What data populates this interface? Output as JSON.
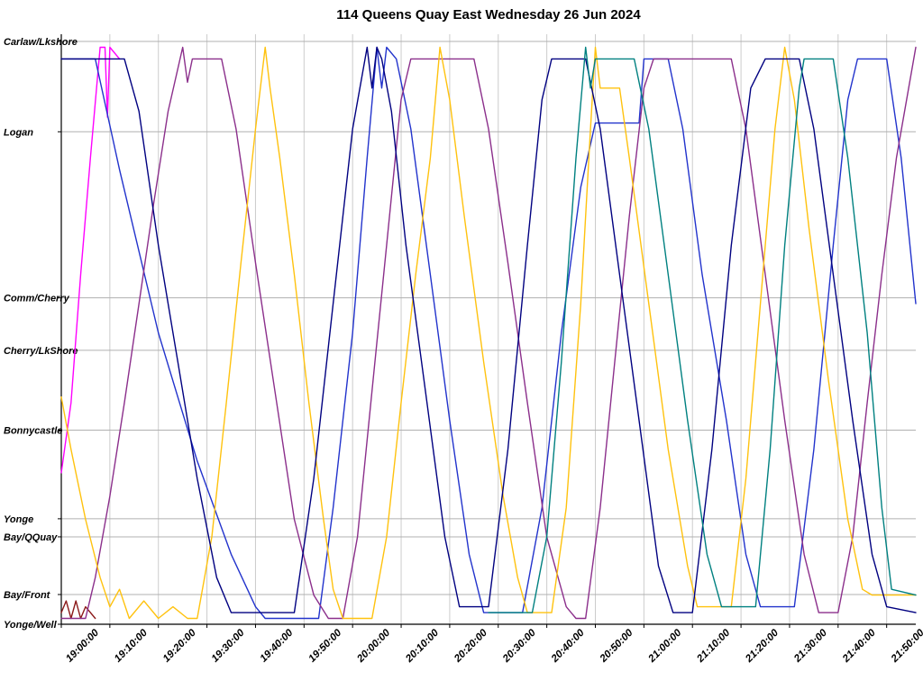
{
  "chart_data": {
    "type": "line",
    "title": "114 Queens Quay East Wednesday 26 Jun 2024",
    "xlabel": "",
    "ylabel": "",
    "grid": true,
    "legend": "none",
    "x_axis": {
      "unit": "time-of-day",
      "start_label": "19:00:00",
      "end_minutes": 176,
      "tick_interval_minutes": 10,
      "tick_labels": [
        "19:00:00",
        "19:10:00",
        "19:20:00",
        "19:30:00",
        "19:40:00",
        "19:50:00",
        "20:00:00",
        "20:10:00",
        "20:20:00",
        "20:30:00",
        "20:40:00",
        "20:50:00",
        "21:00:00",
        "21:10:00",
        "21:20:00",
        "21:30:00",
        "21:40:00",
        "21:50:00"
      ]
    },
    "y_axis": {
      "unit": "position-along-route",
      "range": [
        0,
        100
      ],
      "stations": [
        {
          "name": "Carlaw/Lkshore",
          "position": 100
        },
        {
          "name": "Logan",
          "position": 84.5
        },
        {
          "name": "Comm/Cherry",
          "position": 56
        },
        {
          "name": "Cherry/LkShore",
          "position": 47
        },
        {
          "name": "Bonnycastle",
          "position": 33.3
        },
        {
          "name": "Yonge",
          "position": 18.1
        },
        {
          "name": "Bay/QQuay",
          "position": 15
        },
        {
          "name": "Bay/Front",
          "position": 5.1
        },
        {
          "name": "Yonge/Well",
          "position": 0
        }
      ]
    },
    "series": [
      {
        "name": "vehicle-magenta",
        "color": "#ff00ff",
        "points": [
          [
            0,
            26
          ],
          [
            2,
            38
          ],
          [
            4,
            60
          ],
          [
            6,
            80
          ],
          [
            8,
            99
          ],
          [
            9,
            99
          ],
          [
            9.5,
            87
          ],
          [
            10,
            99
          ],
          [
            12,
            97
          ]
        ]
      },
      {
        "name": "vehicle-darkred",
        "color": "#8b1a1a",
        "points": [
          [
            0,
            2
          ],
          [
            1,
            4
          ],
          [
            2,
            1
          ],
          [
            3,
            4
          ],
          [
            4,
            1
          ],
          [
            5,
            3
          ],
          [
            7,
            1
          ]
        ]
      },
      {
        "name": "vehicle-blue",
        "color": "#2233cc",
        "points": [
          [
            0,
            97
          ],
          [
            7,
            97
          ],
          [
            12,
            78
          ],
          [
            20,
            50
          ],
          [
            28,
            28
          ],
          [
            35,
            12
          ],
          [
            40,
            3
          ],
          [
            42,
            1
          ],
          [
            53,
            1
          ],
          [
            56,
            20
          ],
          [
            60,
            50
          ],
          [
            63,
            80
          ],
          [
            65,
            99
          ],
          [
            66,
            92
          ],
          [
            67,
            99
          ],
          [
            69,
            97
          ],
          [
            72,
            85
          ],
          [
            76,
            60
          ],
          [
            80,
            35
          ],
          [
            84,
            12
          ],
          [
            87,
            2
          ],
          [
            95,
            2
          ],
          [
            99,
            20
          ],
          [
            103,
            50
          ],
          [
            107,
            75
          ],
          [
            110,
            86
          ],
          [
            119,
            86
          ],
          [
            120,
            97
          ],
          [
            125,
            97
          ],
          [
            128,
            85
          ],
          [
            132,
            60
          ],
          [
            137,
            35
          ],
          [
            141,
            12
          ],
          [
            144,
            3
          ],
          [
            151,
            3
          ],
          [
            155,
            30
          ],
          [
            159,
            65
          ],
          [
            162,
            90
          ],
          [
            164,
            97
          ],
          [
            170,
            97
          ],
          [
            173,
            80
          ],
          [
            176,
            55
          ]
        ]
      },
      {
        "name": "vehicle-purple",
        "color": "#8b2f8b",
        "points": [
          [
            0,
            1
          ],
          [
            5,
            1
          ],
          [
            7,
            8
          ],
          [
            10,
            22
          ],
          [
            13,
            38
          ],
          [
            16,
            55
          ],
          [
            19,
            72
          ],
          [
            22,
            88
          ],
          [
            25,
            99
          ],
          [
            26,
            93
          ],
          [
            27,
            97
          ],
          [
            33,
            97
          ],
          [
            36,
            85
          ],
          [
            40,
            62
          ],
          [
            44,
            40
          ],
          [
            48,
            18
          ],
          [
            52,
            5
          ],
          [
            55,
            1
          ],
          [
            58,
            1
          ],
          [
            61,
            15
          ],
          [
            64,
            40
          ],
          [
            67,
            65
          ],
          [
            70,
            90
          ],
          [
            72,
            97
          ],
          [
            85,
            97
          ],
          [
            88,
            85
          ],
          [
            92,
            62
          ],
          [
            96,
            38
          ],
          [
            100,
            15
          ],
          [
            104,
            3
          ],
          [
            106,
            1
          ],
          [
            108,
            1
          ],
          [
            111,
            20
          ],
          [
            114,
            45
          ],
          [
            117,
            70
          ],
          [
            120,
            92
          ],
          [
            122,
            97
          ],
          [
            138,
            97
          ],
          [
            141,
            85
          ],
          [
            145,
            60
          ],
          [
            149,
            35
          ],
          [
            153,
            12
          ],
          [
            156,
            2
          ],
          [
            160,
            2
          ],
          [
            163,
            15
          ],
          [
            166,
            38
          ],
          [
            169,
            60
          ],
          [
            172,
            80
          ],
          [
            176,
            99
          ]
        ]
      },
      {
        "name": "vehicle-gold",
        "color": "#ffc20e",
        "points": [
          [
            0,
            39
          ],
          [
            2,
            30
          ],
          [
            5,
            18
          ],
          [
            8,
            8
          ],
          [
            10,
            3
          ],
          [
            12,
            6
          ],
          [
            14,
            1
          ],
          [
            17,
            4
          ],
          [
            20,
            1
          ],
          [
            23,
            3
          ],
          [
            26,
            1
          ],
          [
            28,
            1
          ],
          [
            31,
            15
          ],
          [
            34,
            38
          ],
          [
            37,
            62
          ],
          [
            40,
            85
          ],
          [
            42,
            99
          ],
          [
            43,
            92
          ],
          [
            45,
            80
          ],
          [
            48,
            60
          ],
          [
            51,
            38
          ],
          [
            54,
            18
          ],
          [
            56,
            6
          ],
          [
            58,
            1
          ],
          [
            64,
            1
          ],
          [
            67,
            15
          ],
          [
            70,
            38
          ],
          [
            73,
            60
          ],
          [
            76,
            80
          ],
          [
            78,
            99
          ],
          [
            80,
            90
          ],
          [
            83,
            70
          ],
          [
            87,
            45
          ],
          [
            91,
            22
          ],
          [
            94,
            8
          ],
          [
            96,
            2
          ],
          [
            101,
            2
          ],
          [
            104,
            20
          ],
          [
            107,
            55
          ],
          [
            109,
            85
          ],
          [
            110,
            99
          ],
          [
            111,
            92
          ],
          [
            115,
            92
          ],
          [
            117,
            80
          ],
          [
            121,
            55
          ],
          [
            125,
            30
          ],
          [
            129,
            10
          ],
          [
            131,
            3
          ],
          [
            138,
            3
          ],
          [
            141,
            25
          ],
          [
            144,
            55
          ],
          [
            147,
            85
          ],
          [
            149,
            99
          ],
          [
            151,
            90
          ],
          [
            154,
            68
          ],
          [
            158,
            42
          ],
          [
            162,
            18
          ],
          [
            165,
            6
          ],
          [
            167,
            5
          ],
          [
            176,
            5
          ]
        ]
      },
      {
        "name": "vehicle-navy",
        "color": "#000080",
        "points": [
          [
            0,
            97
          ],
          [
            13,
            97
          ],
          [
            16,
            88
          ],
          [
            20,
            65
          ],
          [
            24,
            45
          ],
          [
            28,
            25
          ],
          [
            32,
            8
          ],
          [
            35,
            2
          ],
          [
            48,
            2
          ],
          [
            52,
            25
          ],
          [
            56,
            55
          ],
          [
            60,
            85
          ],
          [
            63,
            99
          ],
          [
            64,
            92
          ],
          [
            65,
            99
          ],
          [
            66,
            97
          ],
          [
            68,
            88
          ],
          [
            71,
            65
          ],
          [
            75,
            40
          ],
          [
            79,
            15
          ],
          [
            82,
            3
          ],
          [
            88,
            3
          ],
          [
            92,
            30
          ],
          [
            96,
            65
          ],
          [
            99,
            90
          ],
          [
            101,
            97
          ],
          [
            108,
            97
          ],
          [
            111,
            85
          ],
          [
            115,
            60
          ],
          [
            119,
            35
          ],
          [
            123,
            10
          ],
          [
            126,
            2
          ],
          [
            130,
            2
          ],
          [
            134,
            30
          ],
          [
            138,
            65
          ],
          [
            142,
            92
          ],
          [
            145,
            97
          ],
          [
            152,
            97
          ],
          [
            155,
            85
          ],
          [
            159,
            60
          ],
          [
            163,
            35
          ],
          [
            167,
            12
          ],
          [
            170,
            3
          ],
          [
            176,
            2
          ]
        ]
      },
      {
        "name": "vehicle-teal",
        "color": "#008080",
        "points": [
          [
            88,
            2
          ],
          [
            97,
            2
          ],
          [
            100,
            15
          ],
          [
            103,
            45
          ],
          [
            106,
            80
          ],
          [
            108,
            99
          ],
          [
            109,
            92
          ],
          [
            110,
            97
          ],
          [
            118,
            97
          ],
          [
            121,
            85
          ],
          [
            125,
            60
          ],
          [
            129,
            35
          ],
          [
            133,
            12
          ],
          [
            136,
            3
          ],
          [
            143,
            3
          ],
          [
            146,
            30
          ],
          [
            149,
            65
          ],
          [
            152,
            92
          ],
          [
            153,
            97
          ],
          [
            159,
            97
          ],
          [
            162,
            80
          ],
          [
            166,
            50
          ],
          [
            169,
            20
          ],
          [
            171,
            6
          ],
          [
            176,
            5
          ]
        ]
      }
    ],
    "colors": {
      "axis": "#000000",
      "grid_horizontal": "#b0b0b0",
      "grid_vertical": "#cccccc",
      "background": "#ffffff",
      "text": "#000000"
    }
  }
}
